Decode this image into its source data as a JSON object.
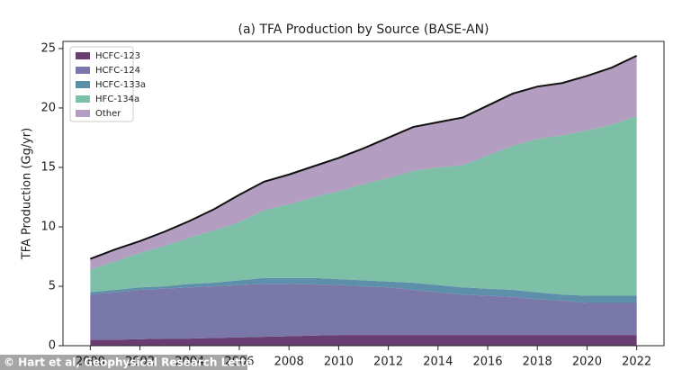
{
  "chart_data": {
    "type": "stacked-area",
    "title": "(a) TFA Production by Source (BASE-AN)",
    "y_label": "TFA Production (Gg/yr)",
    "credit": "© Hart et al, Geophysical Research Letters",
    "x": [
      2000,
      2001,
      2002,
      2003,
      2004,
      2005,
      2006,
      2007,
      2008,
      2009,
      2010,
      2011,
      2012,
      2013,
      2014,
      2015,
      2016,
      2017,
      2018,
      2019,
      2020,
      2021,
      2022
    ],
    "series": [
      {
        "name": "HCFC-123",
        "color": "#6a3d72",
        "values": [
          0.5,
          0.5,
          0.55,
          0.6,
          0.6,
          0.65,
          0.7,
          0.75,
          0.8,
          0.85,
          0.9,
          0.9,
          0.9,
          0.9,
          0.9,
          0.9,
          0.9,
          0.9,
          0.9,
          0.9,
          0.9,
          0.9,
          0.9
        ]
      },
      {
        "name": "HCFC-124",
        "color": "#7a77a9",
        "values": [
          3.8,
          4.0,
          4.15,
          4.2,
          4.3,
          4.35,
          4.4,
          4.45,
          4.4,
          4.3,
          4.2,
          4.1,
          4.0,
          3.8,
          3.6,
          3.4,
          3.3,
          3.2,
          3.0,
          2.9,
          2.7,
          2.7,
          2.7
        ]
      },
      {
        "name": "HCFC-133a",
        "color": "#5e8faa",
        "values": [
          0.2,
          0.2,
          0.2,
          0.2,
          0.3,
          0.3,
          0.4,
          0.5,
          0.5,
          0.55,
          0.5,
          0.5,
          0.5,
          0.6,
          0.6,
          0.6,
          0.6,
          0.6,
          0.6,
          0.5,
          0.6,
          0.6,
          0.6
        ]
      },
      {
        "name": "HFC-134a",
        "color": "#7dbfa7",
        "values": [
          1.9,
          2.4,
          2.9,
          3.4,
          3.9,
          4.4,
          4.9,
          5.7,
          6.2,
          6.8,
          7.4,
          8.1,
          8.7,
          9.4,
          9.9,
          10.3,
          11.2,
          12.1,
          12.9,
          13.4,
          13.9,
          14.4,
          15.1
        ]
      },
      {
        "name": "Other",
        "color": "#b39dc0",
        "values": [
          0.9,
          1.0,
          1.0,
          1.2,
          1.4,
          1.8,
          2.3,
          2.4,
          2.5,
          2.6,
          2.8,
          3.0,
          3.4,
          3.7,
          3.8,
          4.0,
          4.2,
          4.4,
          4.4,
          4.4,
          4.6,
          4.8,
          5.1
        ]
      }
    ],
    "xlim": [
      1998.9,
      2023.1
    ],
    "ylim": [
      0,
      25.6
    ],
    "xticks": [
      2000,
      2002,
      2004,
      2006,
      2008,
      2010,
      2012,
      2014,
      2016,
      2018,
      2020,
      2022
    ],
    "yticks": [
      0,
      5,
      10,
      15,
      20,
      25
    ],
    "legend": "upper left"
  }
}
